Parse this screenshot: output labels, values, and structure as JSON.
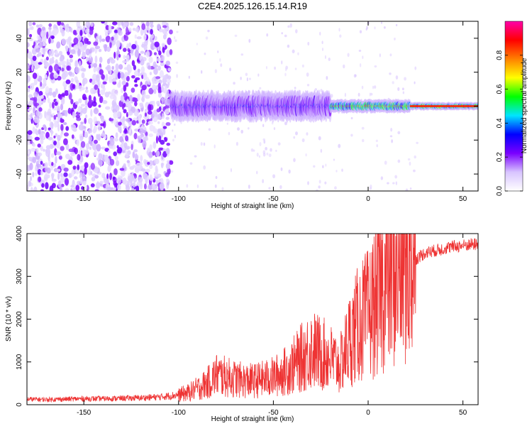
{
  "figure": {
    "title": "C2E4.2025.126.15.14.R19"
  },
  "chart_data": [
    {
      "type": "heatmap",
      "title": "C2E4.2025.126.15.14.R19",
      "xlabel": "Height of straight line (km)",
      "ylabel": "Frequency (Hz)",
      "xlim": [
        -180,
        58
      ],
      "ylim": [
        -50,
        50
      ],
      "xticks": [
        -150,
        -100,
        -50,
        0,
        50
      ],
      "yticks": [
        -40,
        -20,
        0,
        20,
        40
      ],
      "colorbar": {
        "label": "Normalized spectral amplitude",
        "range": [
          0,
          1
        ],
        "ticks": [
          0.0,
          0.2,
          0.4,
          0.6,
          0.8
        ],
        "colormap": [
          "#ffffff",
          "#d8c4ff",
          "#7a00ff",
          "#0000ff",
          "#00e5ff",
          "#00ff00",
          "#ffff00",
          "#ff8000",
          "#ff0000",
          "#ff00aa"
        ]
      },
      "regions": [
        {
          "x_range": [
            -180,
            -104
          ],
          "description_value": "broadband noise",
          "amplitude_max": 0.15
        },
        {
          "x_range": [
            -104,
            -20
          ],
          "center_hz": 0,
          "spread_hz": 5,
          "amplitude_max": 0.4
        },
        {
          "x_range": [
            -20,
            22
          ],
          "center_hz": 0,
          "spread_hz": 2,
          "amplitude_max": 0.9
        },
        {
          "x_range": [
            22,
            58
          ],
          "center_hz": 0,
          "spread_hz": 1,
          "amplitude_max": 0.9
        }
      ]
    },
    {
      "type": "line",
      "xlabel": "Height of straight line (km)",
      "ylabel": "SNR (10 * v/v)",
      "xlim": [
        -180,
        58
      ],
      "ylim": [
        0,
        4000
      ],
      "xticks": [
        -150,
        -100,
        -50,
        0,
        50
      ],
      "yticks": [
        0,
        1000,
        2000,
        3000,
        4000
      ],
      "color": "#ee3333",
      "series": [
        {
          "x": [
            -180,
            -170,
            -160,
            -150,
            -140,
            -130,
            -120,
            -110,
            -100,
            -95,
            -90,
            -85,
            -80,
            -75,
            -70,
            -65,
            -60,
            -55,
            -50,
            -45,
            -40,
            -35,
            -30,
            -25,
            -20,
            -15,
            -10,
            -5,
            0,
            5,
            10,
            15,
            20,
            25,
            30,
            35,
            40,
            45,
            50,
            55,
            58
          ],
          "y": [
            130,
            120,
            130,
            140,
            140,
            150,
            160,
            180,
            230,
            280,
            380,
            500,
            700,
            650,
            600,
            560,
            560,
            600,
            650,
            750,
            900,
            1100,
            1300,
            1200,
            1100,
            900,
            1500,
            1900,
            2100,
            2500,
            3000,
            3100,
            3300,
            3400,
            3550,
            3600,
            3650,
            3700,
            3720,
            3750,
            3750
          ]
        }
      ]
    }
  ]
}
